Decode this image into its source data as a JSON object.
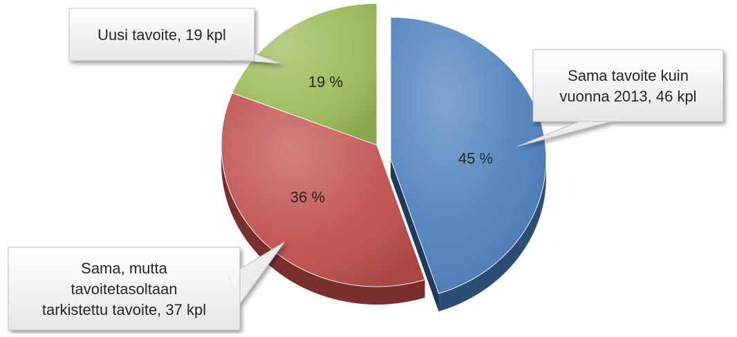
{
  "chart_data": {
    "type": "pie",
    "title": "",
    "style": "3d-exploded",
    "start_angle_deg": 0,
    "direction": "clockwise",
    "slices": [
      {
        "key": "same",
        "value": 45,
        "count": 46,
        "percent_label": "45 %",
        "category_lines": [
          "Sama tavoite kuin",
          "vuonna 2013, 46 kpl"
        ],
        "color": "#4f81bd",
        "side_color": "#2c4d75",
        "exploded": true
      },
      {
        "key": "revised",
        "value": 36,
        "count": 37,
        "percent_label": "36 %",
        "category_lines": [
          "Sama, mutta",
          "tavoitetasoltaan",
          "tarkistettu tavoite, 37 kpl"
        ],
        "color": "#c0504d",
        "side_color": "#7a2f2d",
        "exploded": false
      },
      {
        "key": "new",
        "value": 19,
        "count": 19,
        "percent_label": "19 %",
        "category_lines": [
          "Uusi tavoite, 19 kpl"
        ],
        "color": "#9bbb59",
        "side_color": "#4f6228",
        "exploded": false
      }
    ],
    "callout_background": "#f2f2f2",
    "callout_border": "#bfbfbf",
    "text_color": "#262626"
  }
}
